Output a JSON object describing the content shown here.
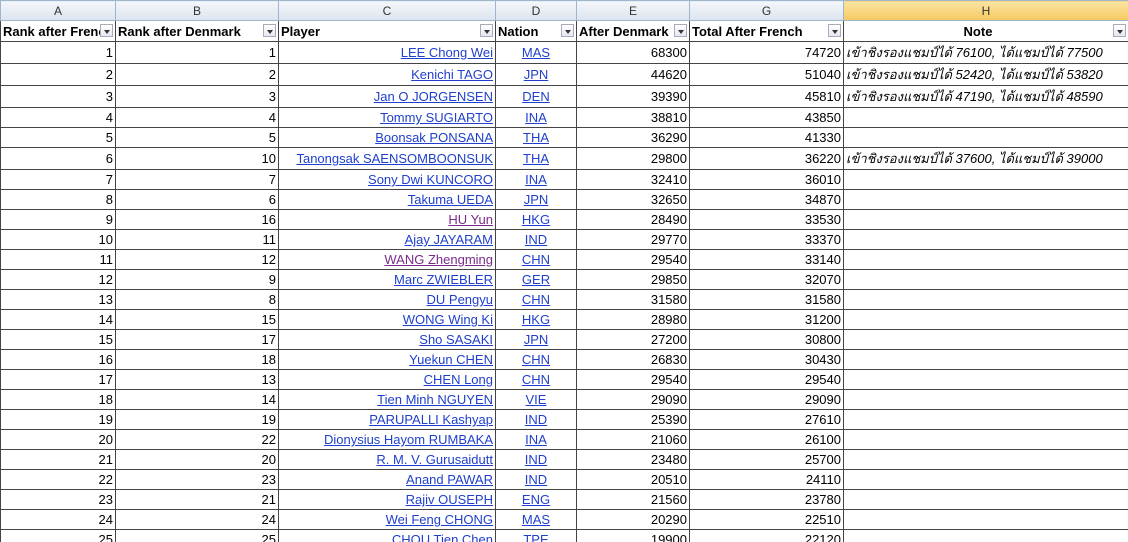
{
  "columns": [
    "A",
    "B",
    "C",
    "D",
    "E",
    "G",
    "H"
  ],
  "headers": [
    "Rank after French",
    "Rank after Denmark",
    "Player",
    "Nation",
    "After Denmark",
    "Total After French",
    "Note"
  ],
  "rows": [
    [
      1,
      1,
      "LEE Chong Wei",
      "MAS",
      68300,
      74720,
      "เข้าชิงรองแชมป์ได้ 76100, ได้แชมป์ได้ 77500"
    ],
    [
      2,
      2,
      "Kenichi TAGO",
      "JPN",
      44620,
      51040,
      "เข้าชิงรองแชมป์ได้ 52420, ได้แชมป์ได้ 53820"
    ],
    [
      3,
      3,
      "Jan O JORGENSEN",
      "DEN",
      39390,
      45810,
      "เข้าชิงรองแชมป์ได้ 47190, ได้แชมป์ได้ 48590"
    ],
    [
      4,
      4,
      "Tommy SUGIARTO",
      "INA",
      38810,
      43850,
      null
    ],
    [
      5,
      5,
      "Boonsak PONSANA",
      "THA",
      36290,
      41330,
      null
    ],
    [
      6,
      10,
      "Tanongsak SAENSOMBOONSUK",
      "THA",
      29800,
      36220,
      "เข้าชิงรองแชมป์ได้ 37600, ได้แชมป์ได้ 39000"
    ],
    [
      7,
      7,
      "Sony Dwi KUNCORO",
      "INA",
      32410,
      36010,
      null
    ],
    [
      8,
      6,
      "Takuma UEDA",
      "JPN",
      32650,
      34870,
      null
    ],
    [
      9,
      16,
      "HU Yun",
      "HKG",
      28490,
      33530,
      null
    ],
    [
      10,
      11,
      "Ajay JAYARAM",
      "IND",
      29770,
      33370,
      null
    ],
    [
      11,
      12,
      "WANG Zhengming",
      "CHN",
      29540,
      33140,
      null
    ],
    [
      12,
      9,
      "Marc ZWIEBLER",
      "GER",
      29850,
      32070,
      null
    ],
    [
      13,
      8,
      "DU Pengyu",
      "CHN",
      31580,
      31580,
      null
    ],
    [
      14,
      15,
      "WONG Wing Ki",
      "HKG",
      28980,
      31200,
      null
    ],
    [
      15,
      17,
      "Sho SASAKI",
      "JPN",
      27200,
      30800,
      null
    ],
    [
      16,
      18,
      "Yuekun CHEN",
      "CHN",
      26830,
      30430,
      null
    ],
    [
      17,
      13,
      "CHEN Long",
      "CHN",
      29540,
      29540,
      null
    ],
    [
      18,
      14,
      "Tien Minh NGUYEN",
      "VIE",
      29090,
      29090,
      null
    ],
    [
      19,
      19,
      "PARUPALLI Kashyap",
      "IND",
      25390,
      27610,
      null
    ],
    [
      20,
      22,
      "Dionysius Hayom RUMBAKA",
      "INA",
      21060,
      26100,
      null
    ],
    [
      21,
      20,
      "R. M. V. Gurusaidutt",
      "IND",
      23480,
      25700,
      null
    ],
    [
      22,
      23,
      "Anand PAWAR",
      "IND",
      20510,
      24110,
      null
    ],
    [
      23,
      21,
      "Rajiv OUSEPH",
      "ENG",
      21560,
      23780,
      null
    ],
    [
      24,
      24,
      "Wei Feng CHONG",
      "MAS",
      20290,
      22510,
      null
    ],
    [
      25,
      25,
      "CHOU Tien Chen",
      "TPE",
      19900,
      22120,
      null
    ]
  ]
}
